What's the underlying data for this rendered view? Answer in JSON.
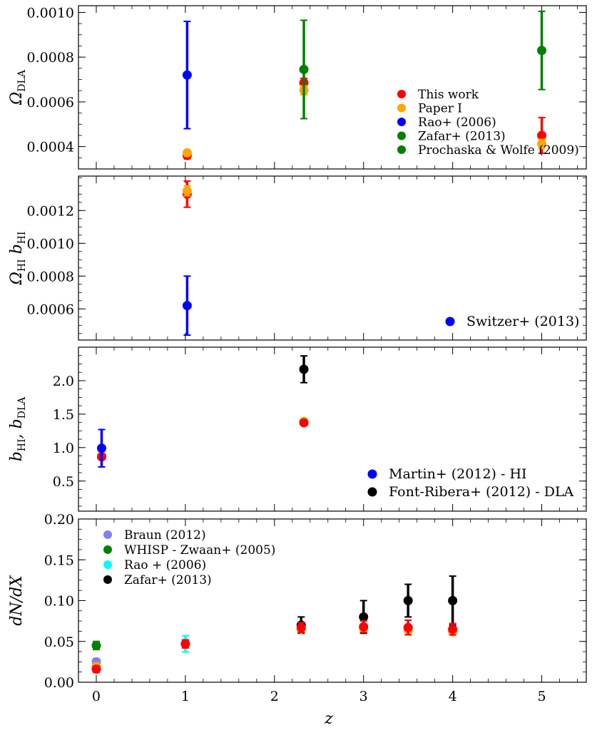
{
  "chart_data": [
    {
      "type": "scatter",
      "ylabel": "Ω_DLA",
      "ylabel_main": "Ω",
      "ylabel_sub": "DLA",
      "xlim": [
        -0.2,
        5.5
      ],
      "ylim": [
        0.0003,
        0.00103
      ],
      "yticks": [
        "0.0004",
        "0.0006",
        "0.0008",
        "0.0010"
      ],
      "ytick_values": [
        0.0004,
        0.0006,
        0.0008,
        0.001
      ],
      "legend_position": "right",
      "series": [
        {
          "name": "This work",
          "color": "#ff0000",
          "x": [
            1.02,
            2.33,
            5.0
          ],
          "y": [
            0.00036,
            0.000685,
            0.00045
          ],
          "yerr": [
            1.5e-05,
            2e-05,
            8e-05
          ]
        },
        {
          "name": "Paper I",
          "color": "#ffa500",
          "x": [
            1.02,
            2.33,
            5.0
          ],
          "y": [
            0.000372,
            0.000652,
            0.000412
          ],
          "yerr": [
            1e-05,
            2e-05,
            2e-05
          ]
        },
        {
          "name": "Rao+ (2006)",
          "color": "#0000ff",
          "x": [
            1.02
          ],
          "y": [
            0.00072
          ],
          "yerr": [
            0.00024
          ]
        },
        {
          "name": "Zafar+ (2013)",
          "color": "#008000",
          "x": [
            2.33
          ],
          "y": [
            0.000745
          ],
          "yerr": [
            0.00022
          ]
        },
        {
          "name": "Prochaska & Wolfe (2009)",
          "color": "#008000",
          "x": [
            5.0
          ],
          "y": [
            0.00083
          ],
          "yerr": [
            0.000175
          ]
        }
      ]
    },
    {
      "type": "scatter",
      "ylabel": "Ω_HI b_HI",
      "ylabel_main": "Ω",
      "ylabel_sub": "HI",
      "ylabel_main2": "b",
      "ylabel_sub2": "HI",
      "xlim": [
        -0.2,
        5.5
      ],
      "ylim": [
        0.00041,
        0.00141
      ],
      "yticks": [
        "0.0006",
        "0.0008",
        "0.0010",
        "0.0012"
      ],
      "ytick_values": [
        0.0006,
        0.0008,
        0.001,
        0.0012
      ],
      "legend_position": "bottom-right",
      "series": [
        {
          "name": "",
          "color": "#ff0000",
          "x": [
            1.02
          ],
          "y": [
            0.0013
          ],
          "yerr": [
            8e-05
          ]
        },
        {
          "name": "",
          "color": "#ffa500",
          "x": [
            1.02
          ],
          "y": [
            0.00132
          ],
          "yerr": [
            3e-05
          ]
        },
        {
          "name": "Switzer+ (2013)",
          "color": "#0000ff",
          "x": [
            1.02
          ],
          "y": [
            0.00062
          ],
          "yerr": [
            0.00018
          ]
        }
      ]
    },
    {
      "type": "scatter",
      "ylabel": "b_HI, b_DLA",
      "ylabel_main": "b",
      "ylabel_sub": "HI",
      "ylabel_main2": "b",
      "ylabel_sub2": "DLA",
      "xlim": [
        -0.2,
        5.5
      ],
      "ylim": [
        0.05,
        2.5
      ],
      "yticks": [
        "0.5",
        "1.0",
        "1.5",
        "2.0"
      ],
      "ytick_values": [
        0.5,
        1.0,
        1.5,
        2.0
      ],
      "legend_position": "bottom-right",
      "series": [
        {
          "name": "",
          "color": "#ffa500",
          "x": [
            0.06,
            2.33
          ],
          "y": [
            0.88,
            1.39
          ],
          "yerr": [
            0.03,
            0.02
          ]
        },
        {
          "name": "",
          "color": "#ff0000",
          "x": [
            0.06,
            2.33
          ],
          "y": [
            0.86,
            1.37
          ],
          "yerr": [
            0.03,
            0.02
          ]
        },
        {
          "name": "Martin+ (2012) - HI",
          "color": "#0000ff",
          "x": [
            0.06
          ],
          "y": [
            0.99
          ],
          "yerr": [
            0.28
          ]
        },
        {
          "name": "Font-Ribera+ (2012) - DLA",
          "color": "#000000",
          "x": [
            2.33
          ],
          "y": [
            2.17
          ],
          "yerr": [
            0.2
          ]
        }
      ]
    },
    {
      "type": "scatter",
      "ylabel": "dN/dX",
      "xlabel": "z",
      "xlim": [
        -0.2,
        5.5
      ],
      "ylim": [
        0.0,
        0.2
      ],
      "xticks": [
        "0",
        "1",
        "2",
        "3",
        "4",
        "5"
      ],
      "xtick_values": [
        0,
        1,
        2,
        3,
        4,
        5
      ],
      "yticks": [
        "0.00",
        "0.05",
        "0.10",
        "0.15",
        "0.20"
      ],
      "ytick_values": [
        0.0,
        0.05,
        0.1,
        0.15,
        0.2
      ],
      "legend_position": "top-left",
      "series": [
        {
          "name": "Braun (2012)",
          "color": "#8080f0",
          "x": [
            0.0
          ],
          "y": [
            0.025
          ],
          "yerr": [
            0.004
          ]
        },
        {
          "name": "WHISP - Zwaan+ (2005)",
          "color": "#008000",
          "x": [
            0.0
          ],
          "y": [
            0.045
          ],
          "yerr": [
            0.005
          ]
        },
        {
          "name": "Rao + (2006)",
          "color": "#00ffff",
          "x": [
            1.0
          ],
          "y": [
            0.047
          ],
          "yerr": [
            0.01
          ]
        },
        {
          "name": "Zafar+ (2013)",
          "color": "#000000",
          "x": [
            2.3,
            3.0,
            3.5,
            4.0
          ],
          "y": [
            0.07,
            0.08,
            0.1,
            0.1
          ],
          "yerr": [
            0.01,
            0.02,
            0.02,
            0.03
          ]
        },
        {
          "name": "",
          "color": "#ffa500",
          "x": [
            0.0,
            1.0,
            2.3,
            3.0,
            3.5,
            4.0
          ],
          "y": [
            0.019,
            0.047,
            0.065,
            0.066,
            0.064,
            0.062
          ],
          "yerr": [
            0.005,
            0.005,
            0.003,
            0.003,
            0.003,
            0.003
          ]
        },
        {
          "name": "",
          "color": "#ff0000",
          "x": [
            0.0,
            1.0,
            2.3,
            3.0,
            3.5,
            4.0
          ],
          "y": [
            0.016,
            0.047,
            0.067,
            0.068,
            0.067,
            0.065
          ],
          "yerr": [
            0.004,
            0.005,
            0.006,
            0.007,
            0.009,
            0.007
          ]
        }
      ]
    }
  ],
  "legends": [
    {
      "entries": [
        {
          "label": "This work",
          "color": "#ff0000"
        },
        {
          "label": "Paper I",
          "color": "#ffa500"
        },
        {
          "label": "Rao+ (2006)",
          "color": "#0000ff"
        },
        {
          "label": "Zafar+ (2013)",
          "color": "#008000"
        },
        {
          "label": "Prochaska & Wolfe (2009)",
          "color": "#008000"
        }
      ]
    },
    {
      "entries": [
        {
          "label": "Switzer+ (2013)",
          "color": "#0000ff"
        }
      ]
    },
    {
      "entries": [
        {
          "label": "Martin+ (2012) - HI",
          "color": "#0000ff"
        },
        {
          "label": "Font-Ribera+ (2012) - DLA",
          "color": "#000000"
        }
      ]
    },
    {
      "entries": [
        {
          "label": "Braun (2012)",
          "color": "#8080f0"
        },
        {
          "label": "WHISP - Zwaan+ (2005)",
          "color": "#008000"
        },
        {
          "label": "Rao + (2006)",
          "color": "#00ffff"
        },
        {
          "label": "Zafar+ (2013)",
          "color": "#000000"
        }
      ]
    }
  ]
}
